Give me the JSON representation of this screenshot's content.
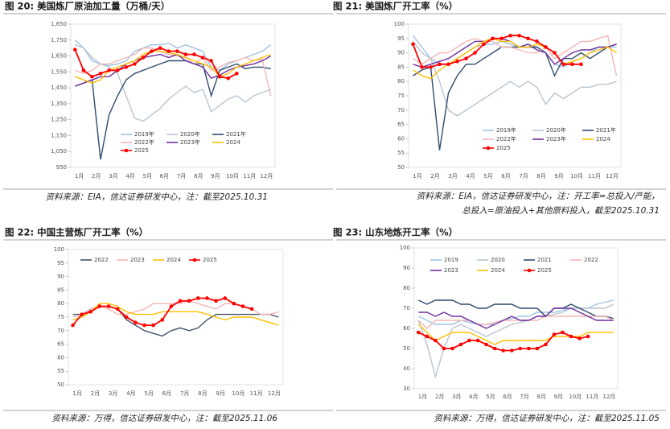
{
  "chart_data": [
    {
      "type": "line",
      "title": "图 20: 美国炼厂原油加工量（万桶/天）",
      "note": [
        "资料来源：EIA，信达证券研发中心，注：截至2025.10.31"
      ],
      "categories": [
        "1月",
        null,
        "2月",
        null,
        "3月",
        null,
        "4月",
        null,
        "5月",
        null,
        "6月",
        null,
        "7月",
        null,
        "8月",
        null,
        "9月",
        null,
        "10月",
        null,
        "11月",
        null,
        "12月",
        null
      ],
      "ylim": [
        950,
        1850
      ],
      "yticks": [
        950,
        {
          "value": 1050,
          "label": "1,050"
        },
        {
          "value": 1150,
          "label": "1,150"
        },
        {
          "value": 1250,
          "label": "1,250"
        },
        {
          "value": 1350,
          "label": "1,350"
        },
        {
          "value": 1450,
          "label": "1,450"
        },
        {
          "value": 1550,
          "label": "1,550"
        },
        {
          "value": 1650,
          "label": "1,650"
        },
        {
          "value": 1750,
          "label": "1,750"
        },
        {
          "value": 1850,
          "label": "1,850"
        }
      ],
      "series": [
        {
          "name": "2019年",
          "color": "#9dc3e6",
          "values": [
            1750,
            1700,
            1620,
            1600,
            1590,
            1600,
            1620,
            1680,
            1700,
            1720,
            1720,
            1730,
            1700,
            1720,
            1700,
            1680,
            1580,
            1560,
            1600,
            1620,
            1640,
            1660,
            1680,
            1720
          ]
        },
        {
          "name": "2020年",
          "color": "#b8c4d0",
          "values": [
            1720,
            1700,
            1640,
            1600,
            1580,
            1540,
            1400,
            1260,
            1240,
            1280,
            1320,
            1380,
            1420,
            1460,
            1420,
            1440,
            1300,
            1340,
            1380,
            1400,
            1360,
            1400,
            1420,
            1440
          ]
        },
        {
          "name": "2021年",
          "color": "#2f4b6e",
          "values": [
            1460,
            1480,
            1500,
            1000,
            1280,
            1400,
            1500,
            1540,
            1560,
            1580,
            1600,
            1620,
            1620,
            1620,
            1600,
            1600,
            1400,
            1560,
            1580,
            1600,
            1570,
            1580,
            1580,
            1570
          ]
        },
        {
          "name": "2022年",
          "color": "#f4b6b6",
          "values": [
            1560,
            1540,
            1560,
            1600,
            1600,
            1620,
            1640,
            1660,
            1700,
            1700,
            1680,
            1660,
            1650,
            1640,
            1600,
            1640,
            1560,
            1580,
            1610,
            1620,
            1640,
            1620,
            1630,
            1400
          ]
        },
        {
          "name": "2023年",
          "color": "#7030a0",
          "values": [
            1460,
            1480,
            1500,
            1520,
            1520,
            1560,
            1600,
            1620,
            1640,
            1650,
            1660,
            1640,
            1660,
            1620,
            1600,
            1580,
            1510,
            1530,
            1560,
            1580,
            1590,
            1600,
            1620,
            1650
          ]
        },
        {
          "name": "2024",
          "color": "#ffc000",
          "values": [
            1520,
            1500,
            1480,
            1500,
            1560,
            1580,
            1600,
            1620,
            1660,
            1680,
            1680,
            1670,
            1660,
            1640,
            1620,
            1600,
            1580,
            1520,
            1540,
            1580,
            1600,
            1620,
            1640,
            1660
          ]
        },
        {
          "name": "2025",
          "color": "#ff0000",
          "values": [
            1690,
            1560,
            1520,
            1540,
            1560,
            1560,
            1580,
            1600,
            1640,
            1680,
            1700,
            1680,
            1680,
            1660,
            1660,
            1640,
            1620,
            1520,
            1510,
            1540,
            null,
            null,
            null,
            null
          ]
        }
      ]
    },
    {
      "type": "line",
      "title": "图 21: 美国炼厂开工率（%）",
      "note": [
        "资料来源：EIA，信达证券研发中心，注：开工率=总投入/产能，",
        "总投入=原油投入+其他原料投入，截至2025.10.31"
      ],
      "categories": [
        "1月",
        null,
        "2月",
        null,
        "3月",
        null,
        "4月",
        null,
        "5月",
        null,
        "6月",
        null,
        "7月",
        null,
        "8月",
        null,
        "9月",
        null,
        "10月",
        null,
        "11月",
        null,
        "12月",
        null
      ],
      "ylim": [
        50,
        100
      ],
      "yticks": [
        50,
        55,
        60,
        65,
        70,
        75,
        80,
        85,
        90,
        95,
        100
      ],
      "series": [
        {
          "name": "2019年",
          "color": "#9dc3e6",
          "values": [
            96,
            92,
            88,
            86,
            86,
            88,
            90,
            92,
            93,
            93,
            94,
            93,
            92,
            93,
            92,
            90,
            86,
            85,
            87,
            88,
            90,
            92,
            92,
            92
          ]
        },
        {
          "name": "2020年",
          "color": "#b8c4d0",
          "values": [
            94,
            90,
            88,
            80,
            70,
            68,
            70,
            72,
            74,
            76,
            78,
            80,
            78,
            80,
            78,
            72,
            76,
            74,
            76,
            78,
            78,
            79,
            79,
            80
          ]
        },
        {
          "name": "2021年",
          "color": "#2f4b6e",
          "values": [
            82,
            84,
            85,
            56,
            76,
            82,
            86,
            86,
            88,
            90,
            92,
            92,
            92,
            92,
            92,
            90,
            82,
            88,
            88,
            90,
            88,
            90,
            92,
            93
          ]
        },
        {
          "name": "2022年",
          "color": "#f4b6b6",
          "values": [
            88,
            86,
            88,
            90,
            90,
            92,
            94,
            95,
            94,
            94,
            92,
            92,
            91,
            90,
            90,
            92,
            88,
            90,
            92,
            94,
            94,
            95,
            96,
            82
          ]
        },
        {
          "name": "2023年",
          "color": "#7030a0",
          "values": [
            86,
            85,
            86,
            87,
            88,
            90,
            92,
            94,
            94,
            95,
            95,
            94,
            92,
            93,
            91,
            90,
            86,
            88,
            90,
            91,
            91,
            92,
            92,
            93
          ]
        },
        {
          "name": "2024",
          "color": "#ffc000",
          "values": [
            84,
            82,
            81,
            84,
            86,
            88,
            90,
            92,
            94,
            95,
            94,
            94,
            92,
            92,
            93,
            92,
            90,
            86,
            87,
            88,
            90,
            91,
            92,
            90
          ]
        },
        {
          "name": "2025",
          "color": "#ff0000",
          "values": [
            93,
            85,
            85,
            86,
            86,
            87,
            88,
            90,
            93,
            95,
            95,
            96,
            96,
            95,
            94,
            92,
            90,
            86,
            86,
            86,
            null,
            null,
            null,
            null
          ]
        }
      ]
    },
    {
      "type": "line",
      "title": "图 22: 中国主营炼厂开工率（%）",
      "note": [
        "资料来源：万得，信达证券研发中心，注：截至2025.11.06"
      ],
      "categories": [
        "1月",
        null,
        "2月",
        null,
        "3月",
        null,
        "4月",
        null,
        "5月",
        null,
        "6月",
        null,
        "7月",
        null,
        "8月",
        null,
        "9月",
        null,
        "10月",
        null,
        "11月",
        null,
        "12月",
        null
      ],
      "ylim": [
        50,
        100
      ],
      "yticks": [
        50,
        55,
        60,
        65,
        70,
        75,
        80,
        85,
        90,
        95,
        100
      ],
      "series": [
        {
          "name": "2022",
          "color": "#44546a",
          "values": [
            76,
            76,
            78,
            79,
            79,
            78,
            74,
            72,
            70,
            69,
            68,
            70,
            71,
            70,
            71,
            74,
            76,
            76,
            76,
            76,
            76,
            76,
            76,
            75
          ]
        },
        {
          "name": "2023",
          "color": "#f4b6b6",
          "values": [
            75,
            76,
            78,
            79,
            78,
            76,
            76,
            77,
            78,
            80,
            80,
            80,
            80,
            81,
            80,
            79,
            78,
            80,
            80,
            79,
            78,
            76,
            76,
            77
          ]
        },
        {
          "name": "2024",
          "color": "#ffc000",
          "values": [
            74,
            75,
            77,
            80,
            80,
            79,
            77,
            76,
            76,
            76,
            77,
            77,
            77,
            77,
            77,
            76,
            75,
            74,
            75,
            75,
            75,
            74,
            73,
            72
          ]
        },
        {
          "name": "2025",
          "color": "#ff0000",
          "values": [
            72,
            76,
            77,
            79,
            79,
            78,
            75,
            73,
            72,
            72,
            74,
            79,
            81,
            81,
            82,
            82,
            81,
            82,
            80,
            79,
            78,
            null,
            null,
            null
          ]
        }
      ]
    },
    {
      "type": "line",
      "title": "图 23: 山东地炼开工率（%）",
      "note": [
        "资料来源：万得，信达证券研发中心，注：截至2025.11.05"
      ],
      "categories": [
        "1月",
        null,
        "2月",
        null,
        "3月",
        null,
        "4月",
        null,
        "5月",
        null,
        "6月",
        null,
        "7月",
        null,
        "8月",
        null,
        "9月",
        null,
        "10月",
        null,
        "11月",
        null,
        "12月",
        null
      ],
      "ylim": [
        30,
        100
      ],
      "yticks": [
        30,
        40,
        50,
        60,
        70,
        80,
        90,
        100
      ],
      "series": [
        {
          "name": "2019",
          "color": "#9dc3e6",
          "values": [
            66,
            64,
            62,
            62,
            62,
            64,
            63,
            62,
            62,
            62,
            64,
            65,
            66,
            66,
            68,
            68,
            68,
            69,
            70,
            70,
            70,
            72,
            73,
            74
          ]
        },
        {
          "name": "2020",
          "color": "#b8c4d0",
          "values": [
            64,
            52,
            36,
            50,
            60,
            62,
            60,
            58,
            56,
            58,
            60,
            62,
            63,
            64,
            66,
            66,
            67,
            68,
            70,
            70,
            70,
            70,
            70,
            72
          ]
        },
        {
          "name": "2021",
          "color": "#2f4b6e",
          "values": [
            74,
            72,
            74,
            74,
            74,
            72,
            72,
            70,
            70,
            72,
            72,
            72,
            70,
            70,
            70,
            66,
            70,
            70,
            72,
            70,
            68,
            66,
            66,
            65
          ]
        },
        {
          "name": "2022",
          "color": "#f4b6b6",
          "values": [
            64,
            60,
            64,
            64,
            64,
            64,
            64,
            62,
            62,
            63,
            64,
            64,
            64,
            64,
            64,
            66,
            66,
            66,
            66,
            66,
            66,
            66,
            66,
            64
          ]
        },
        {
          "name": "2023",
          "color": "#7030a0",
          "values": [
            68,
            68,
            66,
            68,
            66,
            66,
            64,
            62,
            60,
            62,
            64,
            66,
            64,
            64,
            66,
            66,
            70,
            70,
            70,
            68,
            66,
            64,
            64,
            64
          ]
        },
        {
          "name": "2024",
          "color": "#ffc000",
          "values": [
            62,
            58,
            54,
            56,
            58,
            58,
            58,
            56,
            54,
            52,
            54,
            54,
            54,
            54,
            54,
            54,
            56,
            56,
            56,
            56,
            58,
            58,
            58,
            58
          ]
        },
        {
          "name": "2025",
          "color": "#ff0000",
          "values": [
            58,
            56,
            54,
            50,
            50,
            52,
            54,
            54,
            52,
            50,
            49,
            49,
            50,
            50,
            50,
            52,
            57,
            58,
            56,
            55,
            56,
            null,
            null,
            null
          ]
        }
      ]
    }
  ]
}
